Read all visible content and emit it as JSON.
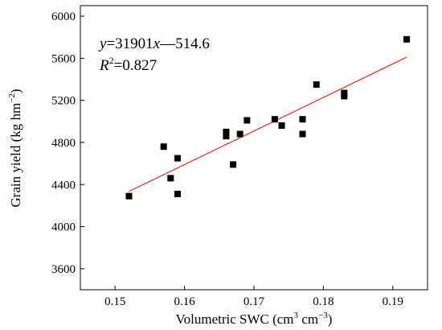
{
  "chart_data": {
    "type": "scatter",
    "title": "",
    "xlabel": {
      "main": "Volumetric SWC (cm",
      "sup1": "3",
      "mid": " cm",
      "sup2": "−3",
      "end": ")"
    },
    "ylabel": {
      "main": "Grain yield (kg hm",
      "sup": "−2",
      "end": ")"
    },
    "xlim": [
      0.145,
      0.195
    ],
    "ylim": [
      3400,
      6100
    ],
    "x_ticks": [
      0.15,
      0.16,
      0.17,
      0.18,
      0.19
    ],
    "x_tick_labels": [
      "0.15",
      "0.16",
      "0.17",
      "0.18",
      "0.19"
    ],
    "y_ticks": [
      3600,
      4000,
      4400,
      4800,
      5200,
      5600,
      6000
    ],
    "y_tick_labels": [
      "3600",
      "4000",
      "4400",
      "4800",
      "5200",
      "5600",
      "6000"
    ],
    "grid": false,
    "points": [
      {
        "x": 0.152,
        "y": 4290
      },
      {
        "x": 0.157,
        "y": 4760
      },
      {
        "x": 0.158,
        "y": 4460
      },
      {
        "x": 0.159,
        "y": 4650
      },
      {
        "x": 0.159,
        "y": 4310
      },
      {
        "x": 0.166,
        "y": 4900
      },
      {
        "x": 0.166,
        "y": 4860
      },
      {
        "x": 0.167,
        "y": 4590
      },
      {
        "x": 0.168,
        "y": 4880
      },
      {
        "x": 0.169,
        "y": 5010
      },
      {
        "x": 0.173,
        "y": 5020
      },
      {
        "x": 0.174,
        "y": 4960
      },
      {
        "x": 0.177,
        "y": 5020
      },
      {
        "x": 0.177,
        "y": 4880
      },
      {
        "x": 0.179,
        "y": 5350
      },
      {
        "x": 0.183,
        "y": 5270
      },
      {
        "x": 0.183,
        "y": 5240
      },
      {
        "x": 0.192,
        "y": 5780
      }
    ],
    "fit_line": {
      "slope": 31901,
      "intercept": -514.6,
      "x_range": [
        0.152,
        0.192
      ],
      "color": "#ff0000"
    },
    "marker_color": "#000000",
    "annotation": {
      "equation": {
        "var_y": "y",
        "eq_mid": "=31901",
        "var_x": "x",
        "eq_end": "—514.6"
      },
      "r2": {
        "var": "R",
        "sup": "2",
        "rest": "=0.827"
      }
    }
  }
}
